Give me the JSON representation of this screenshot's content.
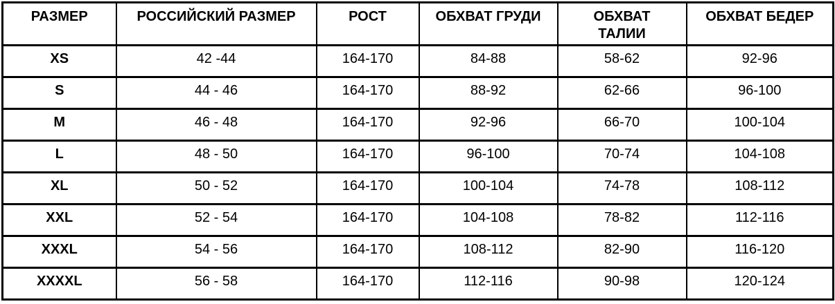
{
  "page": {
    "background_color": "#ffffff",
    "border_color": "#000000",
    "text_color": "#000000"
  },
  "chart_data": {
    "type": "table",
    "columns": [
      "РАЗМЕР",
      "РОССИЙСКИЙ РАЗМЕР",
      "РОСТ",
      "ОБХВАТ ГРУДИ",
      "ОБХВАТ ТАЛИИ",
      "ОБХВАТ БЕДЕР"
    ],
    "rows": [
      [
        "XS",
        "42 -44",
        "164-170",
        "84-88",
        "58-62",
        "92-96"
      ],
      [
        "S",
        "44 - 46",
        "164-170",
        "88-92",
        "62-66",
        "96-100"
      ],
      [
        "M",
        "46 - 48",
        "164-170",
        "92-96",
        "66-70",
        "100-104"
      ],
      [
        "L",
        "48 - 50",
        "164-170",
        "96-100",
        "70-74",
        "104-108"
      ],
      [
        "XL",
        "50 - 52",
        "164-170",
        "100-104",
        "74-78",
        "108-112"
      ],
      [
        "XXL",
        "52 - 54",
        "164-170",
        "104-108",
        "78-82",
        "112-116"
      ],
      [
        "XXXL",
        "54 - 56",
        "164-170",
        "108-112",
        "82-90",
        "116-120"
      ],
      [
        "XXXXL",
        "56 - 58",
        "164-170",
        "112-116",
        "90-98",
        "120-124"
      ]
    ]
  }
}
